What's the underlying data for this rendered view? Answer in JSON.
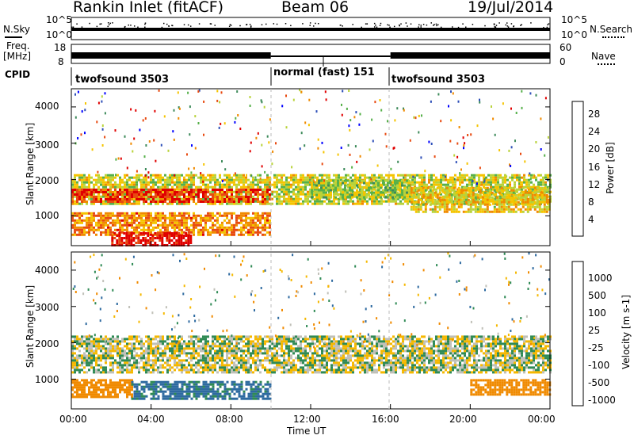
{
  "header": {
    "station": "Rankin Inlet (fitACF)",
    "beam": "Beam 06",
    "date": "19/Jul/2014"
  },
  "top_panels": {
    "nsky_label": "N.Sky",
    "nsearch_label": "N.Search",
    "freq_label_line1": "Freq.",
    "freq_label_line2": "[MHz]",
    "nave_label": "Nave",
    "cpid_label": "CPID",
    "log_ticks": [
      "10^5",
      "10^0"
    ],
    "freq_ticks": [
      "18",
      "8"
    ],
    "nave_ticks": [
      "60",
      "0"
    ],
    "cpid_modes": [
      {
        "name": "twofsound 3503",
        "start_hour": 0,
        "end_hour": 10
      },
      {
        "name": "normal (fast) 151",
        "start_hour": 10,
        "end_hour": 16
      },
      {
        "name": "twofsound 3503",
        "start_hour": 16,
        "end_hour": 24
      }
    ]
  },
  "colors": {
    "power_scale": [
      "#0000ff",
      "#2e4fb8",
      "#3d8a5a",
      "#56b04a",
      "#b9d33a",
      "#f5c400",
      "#f08a00",
      "#e84a10",
      "#e00000"
    ],
    "velocity_scale": [
      "#2a3fb0",
      "#2e6aa0",
      "#2f8a55",
      "#55b83b",
      "#c8c8c0",
      "#f5b800",
      "#f08a00",
      "#e84a10",
      "#e00000"
    ],
    "ground_scatter": "#c0c0b8"
  },
  "chart_data": [
    {
      "type": "heatmap",
      "panel": "power",
      "title": "",
      "xlabel": "Time UT",
      "ylabel": "Slant Range [km]",
      "x_ticks": [
        "00:00",
        "04:00",
        "08:00",
        "12:00",
        "16:00",
        "20:00",
        "00:00"
      ],
      "y_ticks": [
        "1000",
        "2000",
        "3000",
        "4000"
      ],
      "xlim": [
        0,
        24
      ],
      "ylim": [
        180,
        4500
      ],
      "colorbar": {
        "label": "Power [dB]",
        "ticks": [
          "4",
          "8",
          "12",
          "16",
          "20",
          "24",
          "28"
        ],
        "range": [
          0,
          30
        ]
      },
      "regions": [
        {
          "x_start": 0,
          "x_end": 24,
          "y_start": 1300,
          "y_end": 2150,
          "value": 16
        },
        {
          "x_start": 0,
          "x_end": 10,
          "y_start": 1400,
          "y_end": 1750,
          "value": 26
        },
        {
          "x_start": 0,
          "x_end": 10,
          "y_start": 500,
          "y_end": 1100,
          "value": 22
        },
        {
          "x_start": 2,
          "x_end": 6,
          "y_start": 200,
          "y_end": 550,
          "value": 29
        },
        {
          "x_start": 12,
          "x_end": 17,
          "y_start": 1500,
          "y_end": 2000,
          "value": 14
        },
        {
          "x_start": 17,
          "x_end": 24,
          "y_start": 1100,
          "y_end": 1800,
          "value": 18
        }
      ]
    },
    {
      "type": "heatmap",
      "panel": "velocity",
      "title": "",
      "xlabel": "Time UT",
      "ylabel": "Slant Range [km]",
      "x_ticks": [
        "00:00",
        "04:00",
        "08:00",
        "12:00",
        "16:00",
        "20:00",
        "00:00"
      ],
      "y_ticks": [
        "1000",
        "2000",
        "3000",
        "4000"
      ],
      "xlim": [
        0,
        24
      ],
      "ylim": [
        180,
        4500
      ],
      "colorbar": {
        "label": "Velocity [m s-1]",
        "ticks": [
          "1000",
          "500",
          "100",
          "25",
          "-25",
          "-100",
          "-500",
          "-1000"
        ],
        "range": [
          -1000,
          1000
        ]
      },
      "regions": [
        {
          "x_start": 0,
          "x_end": 24,
          "y_start": 1200,
          "y_end": 2200,
          "value": 0
        },
        {
          "x_start": 0,
          "x_end": 3,
          "y_start": 500,
          "y_end": 1000,
          "value": -200
        },
        {
          "x_start": 3,
          "x_end": 10,
          "y_start": 450,
          "y_end": 950,
          "value": 150
        },
        {
          "x_start": 20,
          "x_end": 24,
          "y_start": 600,
          "y_end": 1000,
          "value": -300
        }
      ]
    }
  ]
}
